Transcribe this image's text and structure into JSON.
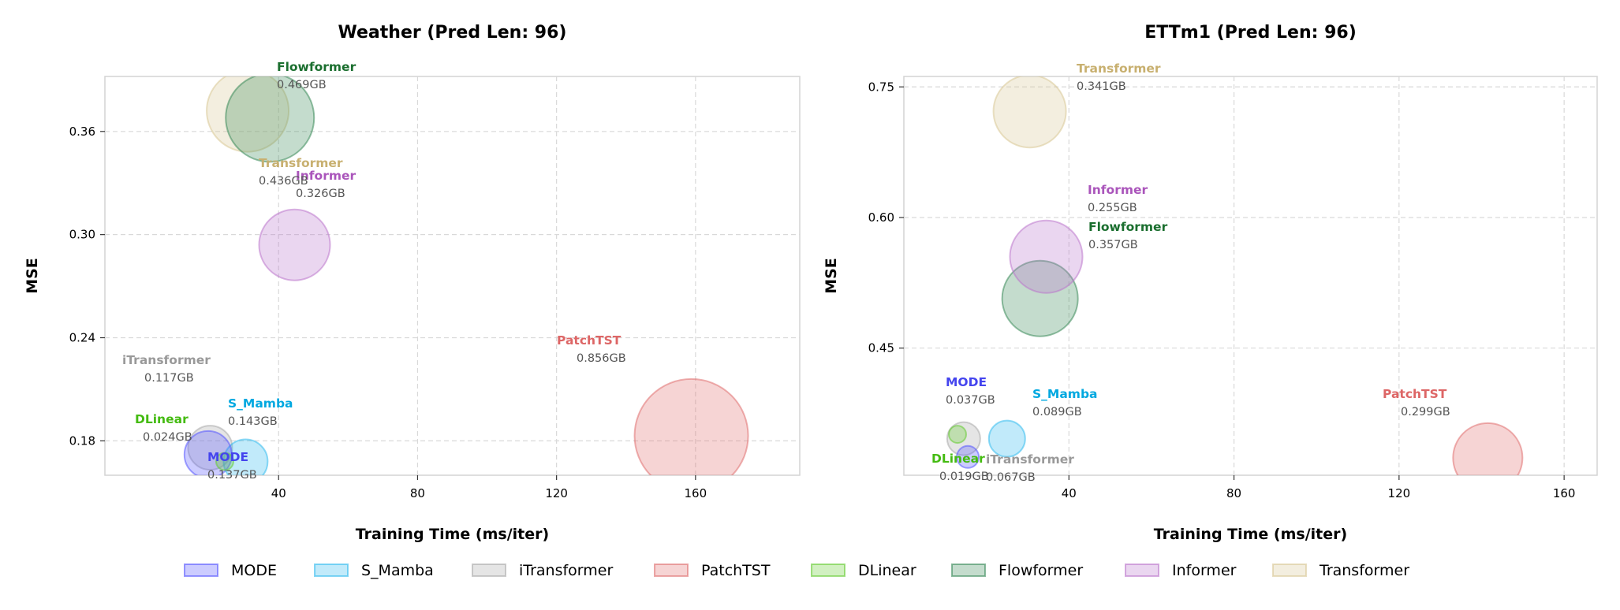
{
  "legend": [
    {
      "name": "MODE",
      "color": "#5555ff"
    },
    {
      "name": "S_Mamba",
      "color": "#33bbee"
    },
    {
      "name": "iTransformer",
      "color": "#aaaaaa"
    },
    {
      "name": "PatchTST",
      "color": "#e07070"
    },
    {
      "name": "DLinear",
      "color": "#66cc33"
    },
    {
      "name": "Flowformer",
      "color": "#3a8a5a"
    },
    {
      "name": "Informer",
      "color": "#bb77cc"
    },
    {
      "name": "Transformer",
      "color": "#d8c896"
    }
  ],
  "chart_data": [
    {
      "type": "scatter",
      "title": "Weather (Pred Len: 96)",
      "xlabel": "Training Time (ms/iter)",
      "ylabel": "MSE",
      "xlim": [
        -10,
        190
      ],
      "ylim": [
        0.16,
        0.392
      ],
      "xticks": [
        40,
        80,
        120,
        160
      ],
      "yticks": [
        0.18,
        0.24,
        0.3,
        0.36
      ],
      "xtick_labels": [
        "40",
        "80",
        "120",
        "160"
      ],
      "ytick_labels": [
        "0.18",
        "0.24",
        "0.30",
        "0.36"
      ],
      "grid": true,
      "points": [
        {
          "name": "MODE",
          "x": 19.7,
          "y": 0.172,
          "memory": "0.137GB",
          "label_color": "#4444ee",
          "fill": "#5555ff"
        },
        {
          "name": "S_Mamba",
          "x": 30.5,
          "y": 0.168,
          "memory": "0.143GB",
          "label_color": "#00a8e0",
          "fill": "#33bbee"
        },
        {
          "name": "iTransformer",
          "x": 20.3,
          "y": 0.176,
          "memory": "0.117GB",
          "label_color": "#999999",
          "fill": "#aaaaaa"
        },
        {
          "name": "PatchTST",
          "x": 158.8,
          "y": 0.183,
          "memory": "0.856GB",
          "label_color": "#dd6666",
          "fill": "#e07070"
        },
        {
          "name": "DLinear",
          "x": 24.5,
          "y": 0.168,
          "memory": "0.024GB",
          "label_color": "#44bb11",
          "fill": "#66cc33"
        },
        {
          "name": "Flowformer",
          "x": 37.5,
          "y": 0.368,
          "memory": "0.469GB",
          "label_color": "#1a6e2e",
          "fill": "#3a8a5a"
        },
        {
          "name": "Informer",
          "x": 44.6,
          "y": 0.294,
          "memory": "0.326GB",
          "label_color": "#aa55bb",
          "fill": "#bb77cc"
        },
        {
          "name": "Transformer",
          "x": 31.1,
          "y": 0.372,
          "memory": "0.436GB",
          "label_color": "#c8b070",
          "fill": "#d8c896"
        }
      ]
    },
    {
      "type": "scatter",
      "title": "ETTm1 (Pred Len: 96)",
      "xlabel": "Training Time (ms/iter)",
      "ylabel": "MSE",
      "xlim": [
        0,
        168
      ],
      "ylim": [
        0.304,
        0.762
      ],
      "xticks": [
        40,
        80,
        120,
        160
      ],
      "yticks": [
        0.45,
        0.6,
        0.75
      ],
      "xtick_labels": [
        "40",
        "80",
        "120",
        "160"
      ],
      "ytick_labels": [
        "0.45",
        "0.60",
        "0.75"
      ],
      "grid": true,
      "points": [
        {
          "name": "MODE",
          "x": 15.5,
          "y": 0.325,
          "memory": "0.037GB",
          "label_color": "#4444ee",
          "fill": "#5555ff"
        },
        {
          "name": "S_Mamba",
          "x": 25.0,
          "y": 0.346,
          "memory": "0.089GB",
          "label_color": "#00a8e0",
          "fill": "#33bbee"
        },
        {
          "name": "iTransformer",
          "x": 14.5,
          "y": 0.346,
          "memory": "0.067GB",
          "label_color": "#999999",
          "fill": "#aaaaaa"
        },
        {
          "name": "PatchTST",
          "x": 141.5,
          "y": 0.324,
          "memory": "0.299GB",
          "label_color": "#dd6666",
          "fill": "#e07070"
        },
        {
          "name": "DLinear",
          "x": 13.0,
          "y": 0.351,
          "memory": "0.019GB",
          "label_color": "#44bb11",
          "fill": "#66cc33"
        },
        {
          "name": "Flowformer",
          "x": 33.0,
          "y": 0.507,
          "memory": "0.357GB",
          "label_color": "#1a6e2e",
          "fill": "#3a8a5a"
        },
        {
          "name": "Informer",
          "x": 34.5,
          "y": 0.555,
          "memory": "0.255GB",
          "label_color": "#aa55bb",
          "fill": "#bb77cc"
        },
        {
          "name": "Transformer",
          "x": 30.5,
          "y": 0.722,
          "memory": "0.341GB",
          "label_color": "#c8b070",
          "fill": "#d8c896"
        }
      ]
    }
  ]
}
